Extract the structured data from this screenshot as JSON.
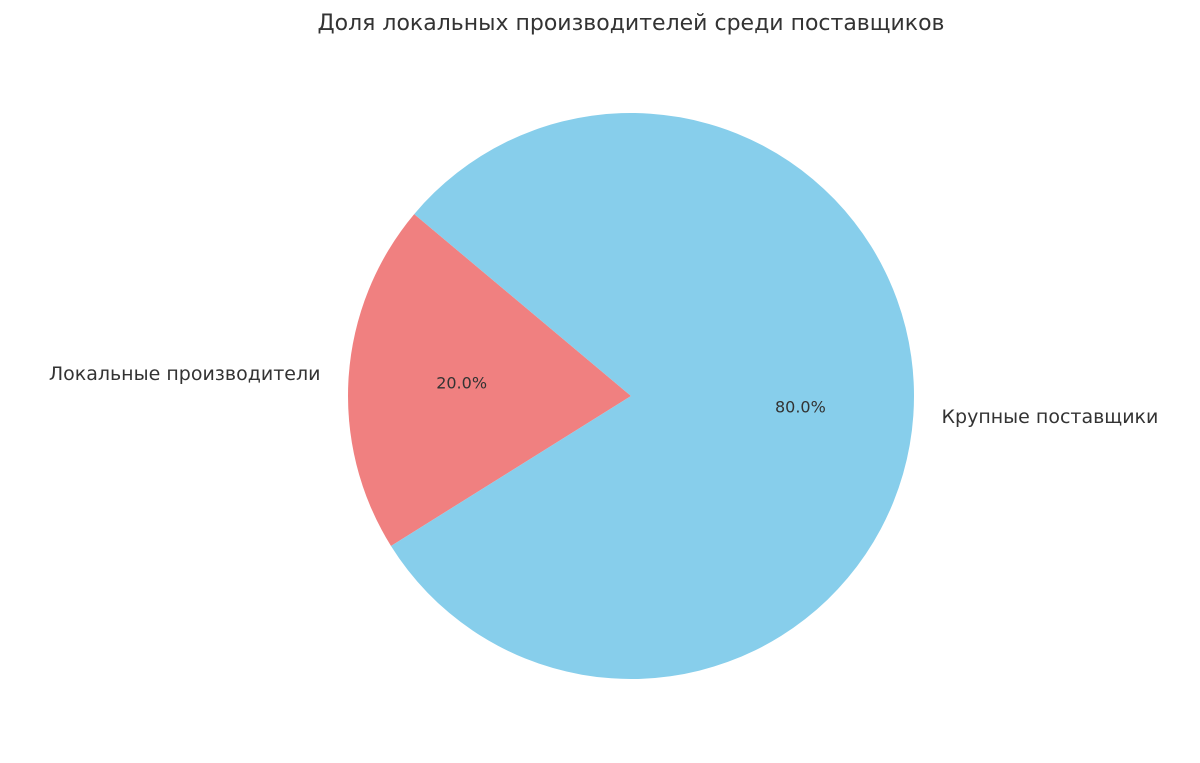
{
  "chart_data": {
    "type": "pie",
    "title": "Доля локальных производителей среди поставщиков",
    "categories": [
      "Локальные производители",
      "Крупные поставщики"
    ],
    "values": [
      20,
      80
    ],
    "value_labels": [
      "20.0%",
      "80.0%"
    ],
    "colors": [
      "#f08080",
      "#87ceeb"
    ]
  }
}
